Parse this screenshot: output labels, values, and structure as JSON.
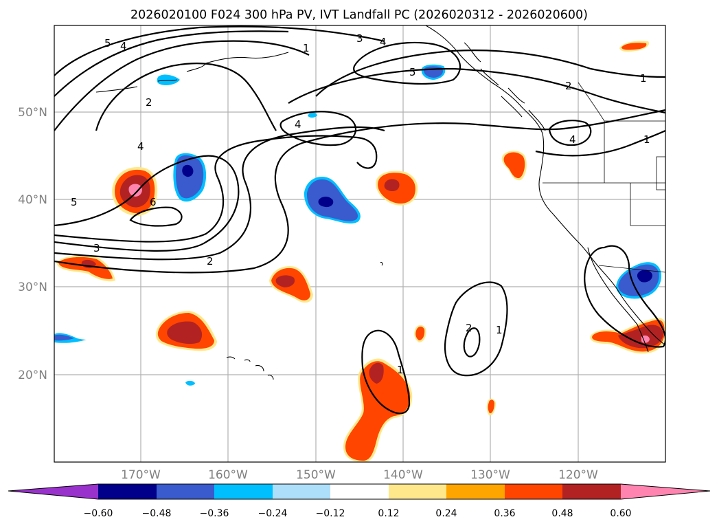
{
  "title": "2026020100 F024 300 hPa PV, IVT Landfall PC (2026020312 - 2026020600)",
  "map": {
    "lat_labels": [
      "50°N",
      "40°N",
      "30°N",
      "20°N"
    ],
    "lon_labels": [
      "170°W",
      "160°W",
      "150°W",
      "140°W",
      "130°W",
      "120°W"
    ]
  },
  "contour_labels": [
    "5",
    "4",
    "1",
    "3",
    "4",
    "5",
    "2",
    "1",
    "2",
    "4",
    "4",
    "4",
    "1",
    "5",
    "6",
    "3",
    "2",
    "2",
    "1",
    "1"
  ],
  "colorbar": {
    "tick_labels": [
      "−0.60",
      "−0.48",
      "−0.36",
      "−0.24",
      "−0.12",
      "0.12",
      "0.24",
      "0.36",
      "0.48",
      "0.60"
    ],
    "colors": [
      "#9932CC",
      "#00008B",
      "#3A5BCD",
      "#00BFFF",
      "#ADDFFA",
      "#FFFFFF",
      "#FFE88C",
      "#FFA500",
      "#FF4500",
      "#B22222",
      "#FF85B0"
    ]
  }
}
